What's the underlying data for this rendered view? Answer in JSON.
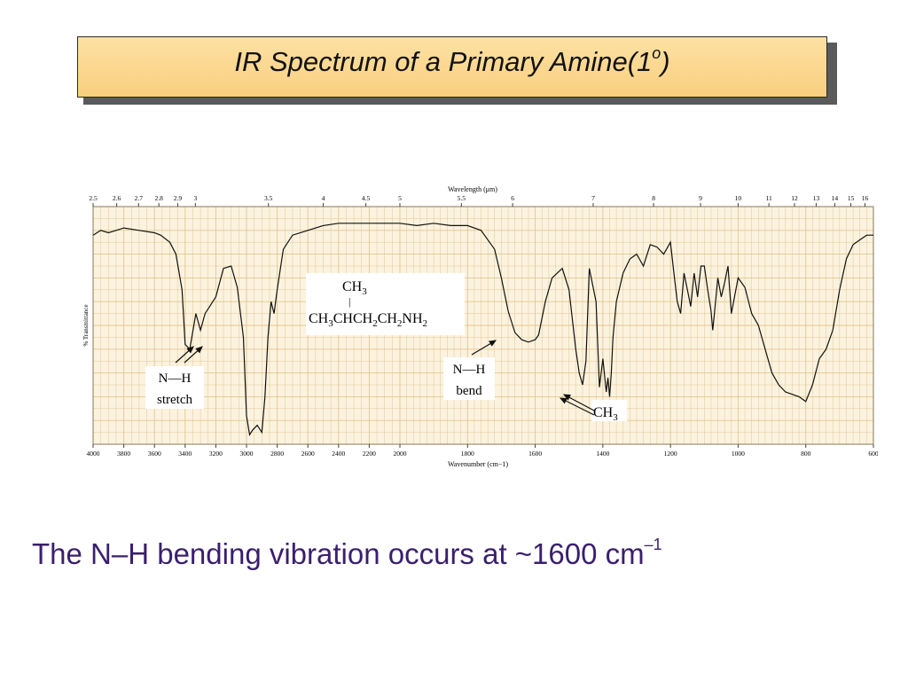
{
  "title": {
    "main": "IR Spectrum of a Primary Amine(1",
    "sup": "o",
    "close": ")"
  },
  "caption": {
    "main": "The N–H bending vibration occurs at ~1600 cm",
    "sup": "–1"
  },
  "colors": {
    "accent": "#f9cf7e",
    "caption": "#3a1f6e",
    "grid": "#e3c690",
    "spectrum": "#111111"
  },
  "chart_data": {
    "type": "line",
    "title": "",
    "xlabel": "Wavenumber (cm−1)",
    "ylabel": "% Transmittance",
    "top_axis_label": "Wavelength (μm)",
    "x_ticks": [
      "4000",
      "3800",
      "3600",
      "3400",
      "3200",
      "3000",
      "2800",
      "2600",
      "2400",
      "2200",
      "2000",
      "1800",
      "1600",
      "1400",
      "1200",
      "1000",
      "800",
      "600"
    ],
    "wavelength_ticks": [
      "2.5",
      "2.6",
      "2.7",
      "2.8",
      "2.9",
      "3",
      "3.5",
      "4",
      "4.5",
      "5",
      "5.5",
      "6",
      "7",
      "8",
      "9",
      "10",
      "11",
      "12",
      "13",
      "14",
      "15",
      "16"
    ],
    "wavelength_values": [
      2.5,
      2.6,
      2.7,
      2.8,
      2.9,
      3,
      3.5,
      4,
      4.5,
      5,
      5.5,
      6,
      7,
      8,
      9,
      10,
      11,
      12,
      13,
      14,
      15,
      16
    ],
    "xlim": [
      4000,
      600
    ],
    "ylim": [
      0,
      100
    ],
    "grid": true,
    "series": [
      {
        "x": [
          4000,
          3950,
          3900,
          3850,
          3800,
          3700,
          3600,
          3560,
          3500,
          3460,
          3420,
          3400,
          3370,
          3330,
          3300,
          3270,
          3240,
          3200,
          3150,
          3100,
          3060,
          3020,
          3000,
          2980,
          2960,
          2930,
          2900,
          2880,
          2860,
          2840,
          2820,
          2800,
          2760,
          2700,
          2600,
          2500,
          2400,
          2300,
          2200,
          2100,
          2000,
          1950,
          1900,
          1850,
          1800,
          1760,
          1720,
          1700,
          1680,
          1660,
          1640,
          1620,
          1600,
          1590,
          1570,
          1550,
          1520,
          1500,
          1480,
          1470,
          1460,
          1450,
          1440,
          1420,
          1410,
          1400,
          1390,
          1385,
          1380,
          1375,
          1370,
          1360,
          1340,
          1320,
          1300,
          1280,
          1260,
          1240,
          1220,
          1200,
          1190,
          1180,
          1170,
          1160,
          1150,
          1140,
          1130,
          1120,
          1110,
          1100,
          1090,
          1080,
          1075,
          1070,
          1060,
          1050,
          1040,
          1030,
          1020,
          1000,
          980,
          960,
          940,
          920,
          900,
          880,
          860,
          840,
          820,
          800,
          780,
          760,
          740,
          720,
          700,
          680,
          660,
          640,
          620,
          600
        ],
        "y": [
          88,
          90,
          89,
          90,
          91,
          90,
          89,
          88,
          85,
          80,
          65,
          42,
          40,
          55,
          48,
          55,
          58,
          62,
          74,
          75,
          66,
          45,
          12,
          4,
          6,
          8,
          5,
          20,
          45,
          60,
          55,
          65,
          82,
          88,
          90,
          92,
          93,
          93,
          93,
          93,
          93,
          92,
          93,
          92,
          92,
          90,
          82,
          70,
          56,
          47,
          44,
          43,
          44,
          46,
          60,
          70,
          74,
          65,
          40,
          30,
          25,
          35,
          74,
          60,
          24,
          36,
          22,
          28,
          20,
          30,
          45,
          60,
          72,
          78,
          80,
          75,
          84,
          83,
          80,
          85,
          72,
          60,
          55,
          72,
          65,
          58,
          72,
          62,
          75,
          75,
          65,
          56,
          48,
          55,
          70,
          62,
          68,
          75,
          55,
          70,
          66,
          55,
          50,
          40,
          30,
          25,
          22,
          21,
          20,
          18,
          25,
          36,
          40,
          48,
          65,
          78,
          84,
          86,
          88,
          88
        ]
      }
    ],
    "labels": [
      {
        "name": "n-h-stretch-line1",
        "text": "N—H"
      },
      {
        "name": "n-h-stretch-line2",
        "text": "stretch"
      },
      {
        "name": "n-h-bend-line1",
        "text": "N—H"
      },
      {
        "name": "n-h-bend-line2",
        "text": "bend"
      },
      {
        "name": "ch3-label",
        "text": "CH"
      },
      {
        "name": "ch3-sub",
        "text": "3"
      }
    ],
    "structure": {
      "top": "CH",
      "top_sub": "3",
      "bond": "|",
      "line_parts": [
        {
          "t": "CH"
        },
        {
          "t": "3",
          "sub": true
        },
        {
          "t": "CHCH"
        },
        {
          "t": "2",
          "sub": true
        },
        {
          "t": "CH"
        },
        {
          "t": "2",
          "sub": true
        },
        {
          "t": "NH"
        },
        {
          "t": "2",
          "sub": true
        }
      ]
    }
  }
}
